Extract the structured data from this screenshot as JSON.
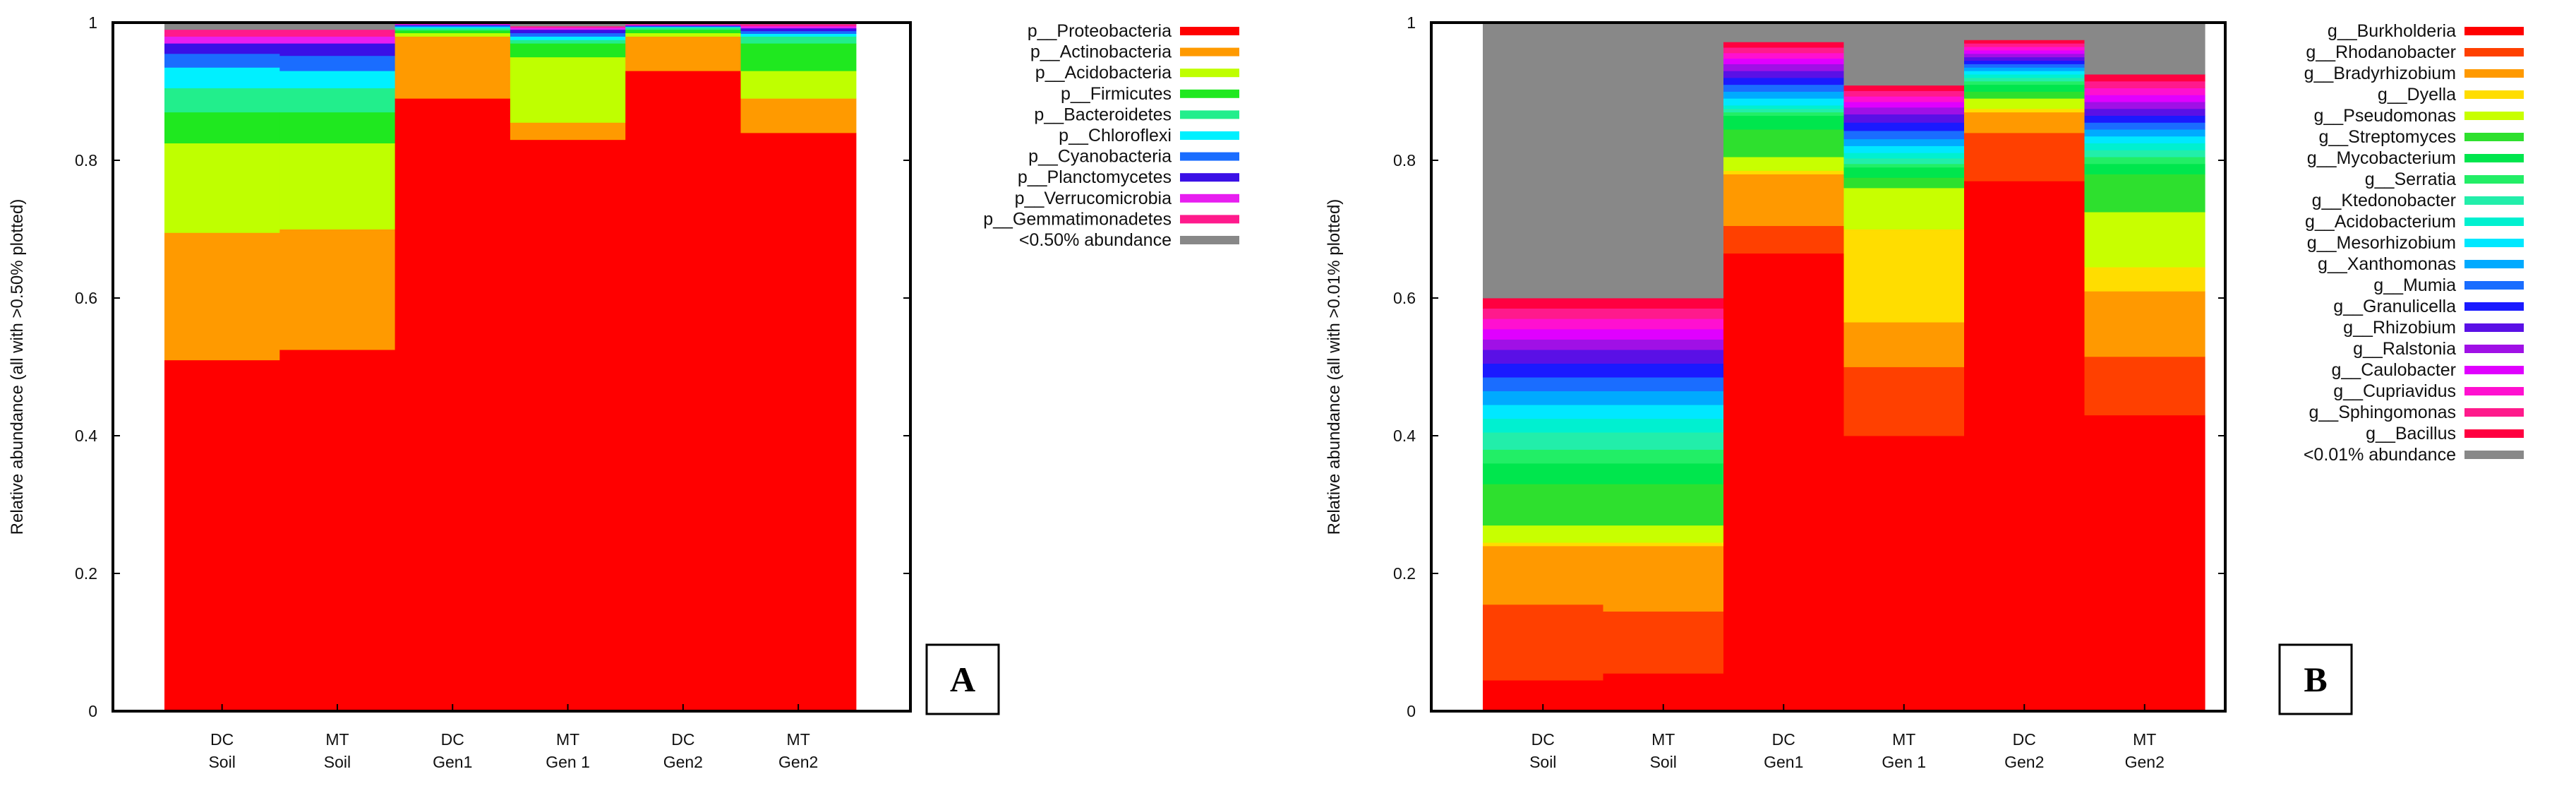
{
  "chart_data": [
    {
      "type": "stacked-bar",
      "panel_label": "A",
      "ylabel": "Relative abundance (all with >0.50% plotted)",
      "ylim": [
        0,
        1
      ],
      "yticks": [
        "0",
        "0.2",
        "0.4",
        "0.6",
        "0.8",
        "1"
      ],
      "categories": [
        [
          "DC",
          "Soil"
        ],
        [
          "MT",
          "Soil"
        ],
        [
          "DC",
          "Gen1"
        ],
        [
          "MT",
          "Gen 1"
        ],
        [
          "DC",
          "Gen2"
        ],
        [
          "MT",
          "Gen2"
        ]
      ],
      "legend_position": "right",
      "series": [
        {
          "name": "p__Proteobacteria",
          "color": "#ff0000",
          "values": [
            0.51,
            0.525,
            0.89,
            0.83,
            0.93,
            0.84
          ]
        },
        {
          "name": "p__Actinobacteria",
          "color": "#ff9a00",
          "values": [
            0.185,
            0.175,
            0.09,
            0.025,
            0.05,
            0.05
          ]
        },
        {
          "name": "p__Acidobacteria",
          "color": "#bfff00",
          "values": [
            0.13,
            0.125,
            0.005,
            0.095,
            0.005,
            0.04
          ]
        },
        {
          "name": "p__Firmicutes",
          "color": "#1fe81f",
          "values": [
            0.045,
            0.045,
            0.004,
            0.02,
            0.005,
            0.04
          ]
        },
        {
          "name": "p__Bacteroidetes",
          "color": "#22ee8c",
          "values": [
            0.035,
            0.035,
            0.003,
            0.005,
            0.003,
            0.01
          ]
        },
        {
          "name": "p__Chloroflexi",
          "color": "#00f0ff",
          "values": [
            0.03,
            0.025,
            0.002,
            0.005,
            0.001,
            0.004
          ]
        },
        {
          "name": "p__Cyanobacteria",
          "color": "#1a6dff",
          "values": [
            0.02,
            0.022,
            0.002,
            0.005,
            0.001,
            0.004
          ]
        },
        {
          "name": "p__Planctomycetes",
          "color": "#3a10e6",
          "values": [
            0.015,
            0.018,
            0.001,
            0.005,
            0.001,
            0.004
          ]
        },
        {
          "name": "p__Verrucomicrobia",
          "color": "#e81ef0",
          "values": [
            0.01,
            0.01,
            0.001,
            0.003,
            0.001,
            0.003
          ]
        },
        {
          "name": "p__Gemmatimonadetes",
          "color": "#ff1a8c",
          "values": [
            0.01,
            0.01,
            0.001,
            0.002,
            0.001,
            0.003
          ]
        },
        {
          "name": "<0.50% abundance",
          "color": "#888888",
          "values": [
            0.01,
            0.01,
            0.0,
            0.005,
            0.002,
            0.002
          ]
        }
      ]
    },
    {
      "type": "stacked-bar",
      "panel_label": "B",
      "ylabel": "Relative abundance (all with >0.01% plotted)",
      "ylim": [
        0,
        1
      ],
      "yticks": [
        "0",
        "0.2",
        "0.4",
        "0.6",
        "0.8",
        "1"
      ],
      "categories": [
        [
          "DC",
          "Soil"
        ],
        [
          "MT",
          "Soil"
        ],
        [
          "DC",
          "Gen1"
        ],
        [
          "MT",
          "Gen 1"
        ],
        [
          "DC",
          "Gen2"
        ],
        [
          "MT",
          "Gen2"
        ]
      ],
      "legend_position": "right",
      "series": [
        {
          "name": "g__Burkholderia",
          "color": "#ff0000",
          "values": [
            0.045,
            0.055,
            0.665,
            0.4,
            0.77,
            0.43
          ]
        },
        {
          "name": "g__Rhodanobacter",
          "color": "#ff4000",
          "values": [
            0.11,
            0.09,
            0.04,
            0.1,
            0.07,
            0.085
          ]
        },
        {
          "name": "g__Bradyrhizobium",
          "color": "#ff9900",
          "values": [
            0.085,
            0.095,
            0.075,
            0.065,
            0.03,
            0.095
          ]
        },
        {
          "name": "g__Dyella",
          "color": "#ffdd00",
          "values": [
            0.005,
            0.005,
            0.005,
            0.135,
            0.005,
            0.035
          ]
        },
        {
          "name": "g__Pseudomonas",
          "color": "#c8ff00",
          "values": [
            0.025,
            0.025,
            0.02,
            0.06,
            0.015,
            0.08
          ]
        },
        {
          "name": "g__Streptomyces",
          "color": "#2ee02e",
          "values": [
            0.06,
            0.06,
            0.04,
            0.015,
            0.01,
            0.055
          ]
        },
        {
          "name": "g__Mycobacterium",
          "color": "#00e64d",
          "values": [
            0.03,
            0.03,
            0.02,
            0.015,
            0.01,
            0.015
          ]
        },
        {
          "name": "g__Serratia",
          "color": "#22ee66",
          "values": [
            0.02,
            0.02,
            0.005,
            0.005,
            0.005,
            0.01
          ]
        },
        {
          "name": "g__Ktedonobacter",
          "color": "#22eeaa",
          "values": [
            0.025,
            0.025,
            0.005,
            0.008,
            0.005,
            0.01
          ]
        },
        {
          "name": "g__Acidobacterium",
          "color": "#00f0d0",
          "values": [
            0.02,
            0.02,
            0.005,
            0.008,
            0.005,
            0.01
          ]
        },
        {
          "name": "g__Mesorhizobium",
          "color": "#00e8ff",
          "values": [
            0.02,
            0.02,
            0.01,
            0.01,
            0.005,
            0.01
          ]
        },
        {
          "name": "g__Xanthomonas",
          "color": "#00aaff",
          "values": [
            0.02,
            0.02,
            0.01,
            0.01,
            0.005,
            0.01
          ]
        },
        {
          "name": "g__Mumia",
          "color": "#1a6dff",
          "values": [
            0.02,
            0.02,
            0.01,
            0.012,
            0.005,
            0.01
          ]
        },
        {
          "name": "g__Granulicella",
          "color": "#1a1aff",
          "values": [
            0.02,
            0.02,
            0.01,
            0.012,
            0.005,
            0.01
          ]
        },
        {
          "name": "g__Rhizobium",
          "color": "#5a10e6",
          "values": [
            0.02,
            0.02,
            0.01,
            0.012,
            0.005,
            0.01
          ]
        },
        {
          "name": "g__Ralstonia",
          "color": "#a010e6",
          "values": [
            0.015,
            0.015,
            0.01,
            0.01,
            0.005,
            0.01
          ]
        },
        {
          "name": "g__Caulobacter",
          "color": "#e000ff",
          "values": [
            0.015,
            0.015,
            0.008,
            0.008,
            0.005,
            0.01
          ]
        },
        {
          "name": "g__Cupriavidus",
          "color": "#ff10d0",
          "values": [
            0.015,
            0.015,
            0.008,
            0.008,
            0.005,
            0.01
          ]
        },
        {
          "name": "g__Sphingomonas",
          "color": "#ff1a8c",
          "values": [
            0.015,
            0.015,
            0.008,
            0.008,
            0.005,
            0.01
          ]
        },
        {
          "name": "g__Bacillus",
          "color": "#ff0040",
          "values": [
            0.015,
            0.015,
            0.008,
            0.008,
            0.005,
            0.01
          ]
        },
        {
          "name": "<0.01% abundance",
          "color": "#888888",
          "values": [
            0.4,
            0.41,
            0.04,
            0.1,
            0.04,
            0.12
          ]
        }
      ]
    }
  ]
}
